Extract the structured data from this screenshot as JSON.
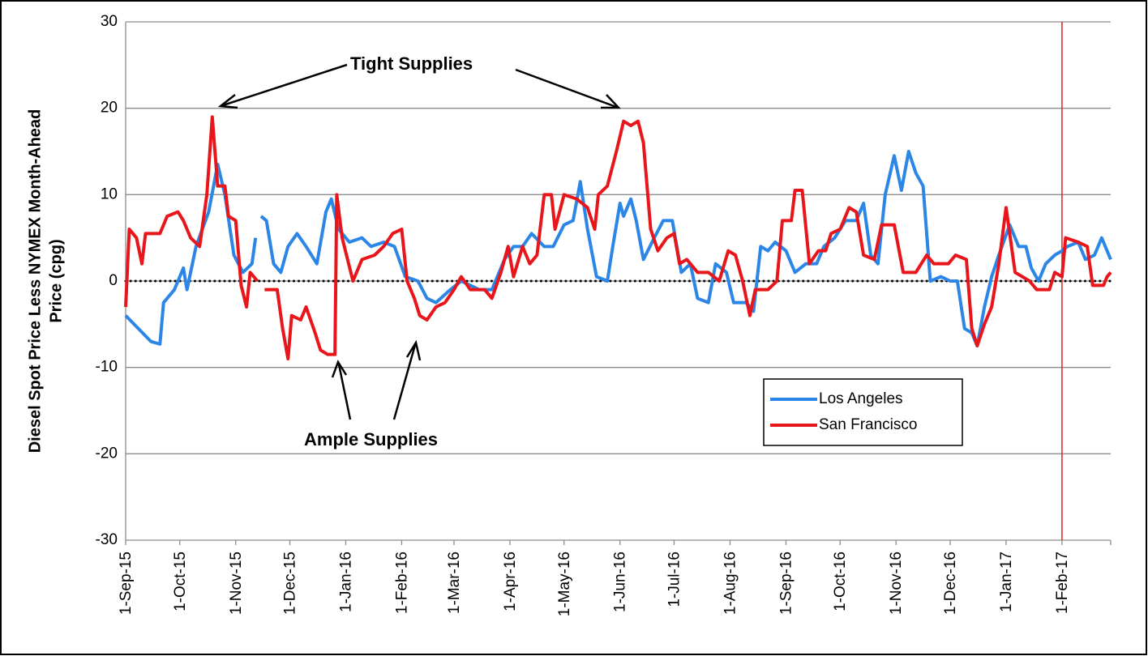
{
  "chart_data": {
    "type": "line",
    "ylabel": [
      "Diesel Spot Price Less NYMEX Month-Ahead",
      "Price (cpg)"
    ],
    "xlim": [
      "2015-09-01",
      "2017-02-28"
    ],
    "xticks": [
      {
        "value": "2015-09-01",
        "label": "1-Sep-15"
      },
      {
        "value": "2015-10-01",
        "label": "1-Oct-15"
      },
      {
        "value": "2015-11-01",
        "label": "1-Nov-15"
      },
      {
        "value": "2015-12-01",
        "label": "1-Dec-15"
      },
      {
        "value": "2016-01-01",
        "label": "1-Jan-16"
      },
      {
        "value": "2016-02-01",
        "label": "1-Feb-16"
      },
      {
        "value": "2016-03-01",
        "label": "1-Mar-16"
      },
      {
        "value": "2016-04-01",
        "label": "1-Apr-16"
      },
      {
        "value": "2016-05-01",
        "label": "1-May-16"
      },
      {
        "value": "2016-06-01",
        "label": "1-Jun-16"
      },
      {
        "value": "2016-07-01",
        "label": "1-Jul-16"
      },
      {
        "value": "2016-08-01",
        "label": "1-Aug-16"
      },
      {
        "value": "2016-09-01",
        "label": "1-Sep-16"
      },
      {
        "value": "2016-10-01",
        "label": "1-Oct-16"
      },
      {
        "value": "2016-11-01",
        "label": "1-Nov-16"
      },
      {
        "value": "2016-12-01",
        "label": "1-Dec-16"
      },
      {
        "value": "2017-01-01",
        "label": "1-Jan-17"
      },
      {
        "value": "2017-02-01",
        "label": "1-Feb-17"
      }
    ],
    "ylim": [
      -30,
      30
    ],
    "yticks": [
      -30,
      -20,
      -10,
      0,
      10,
      20,
      30
    ],
    "grid": true,
    "vline": {
      "value": "2017-02-01",
      "color": "#e02020"
    },
    "annotations": [
      "Tight Supplies",
      "Ample Supplies"
    ],
    "legend": "lower right",
    "series": [
      {
        "name": "Los Angeles",
        "color": "#2b86e6",
        "x": [
          "2015-09-01",
          "2015-09-08",
          "2015-09-15",
          "2015-09-20",
          "2015-09-22",
          "2015-09-28",
          "2015-10-03",
          "2015-10-05",
          "2015-10-10",
          "2015-10-17",
          "2015-10-22",
          "2015-10-26",
          "2015-10-31",
          "2015-11-05",
          "2015-11-10",
          "2015-11-12",
          "2015-11-14",
          "2015-11-15",
          "2015-11-18",
          "2015-11-22",
          "2015-11-26",
          "2015-11-30",
          "2015-12-05",
          "2015-12-10",
          "2015-12-16",
          "2015-12-21",
          "2015-12-24",
          "2015-12-28",
          "2016-01-03",
          "2016-01-10",
          "2016-01-15",
          "2016-01-22",
          "2016-01-28",
          "2016-02-03",
          "2016-02-10",
          "2016-02-15",
          "2016-02-20",
          "2016-02-28",
          "2016-03-05",
          "2016-03-10",
          "2016-03-15",
          "2016-03-22",
          "2016-03-29",
          "2016-04-03",
          "2016-04-08",
          "2016-04-13",
          "2016-04-20",
          "2016-04-25",
          "2016-05-01",
          "2016-05-06",
          "2016-05-10",
          "2016-05-14",
          "2016-05-19",
          "2016-05-25",
          "2016-05-28",
          "2016-06-01",
          "2016-06-03",
          "2016-06-07",
          "2016-06-10",
          "2016-06-14",
          "2016-06-20",
          "2016-06-25",
          "2016-06-30",
          "2016-07-05",
          "2016-07-10",
          "2016-07-14",
          "2016-07-20",
          "2016-07-24",
          "2016-07-30",
          "2016-08-03",
          "2016-08-10",
          "2016-08-14",
          "2016-08-18",
          "2016-08-22",
          "2016-08-26",
          "2016-09-01",
          "2016-09-06",
          "2016-09-12",
          "2016-09-18",
          "2016-09-22",
          "2016-09-28",
          "2016-10-04",
          "2016-10-10",
          "2016-10-14",
          "2016-10-18",
          "2016-10-22",
          "2016-10-26",
          "2016-10-31",
          "2016-11-04",
          "2016-11-08",
          "2016-11-12",
          "2016-11-16",
          "2016-11-20",
          "2016-11-26",
          "2016-12-01",
          "2016-12-05",
          "2016-12-09",
          "2016-12-13",
          "2016-12-16",
          "2016-12-20",
          "2016-12-24",
          "2016-12-28",
          "2017-01-03",
          "2017-01-08",
          "2017-01-12",
          "2017-01-15",
          "2017-01-19",
          "2017-01-23",
          "2017-01-28",
          "2017-02-01",
          "2017-02-04",
          "2017-02-10",
          "2017-02-14",
          "2017-02-19",
          "2017-02-23",
          "2017-02-28"
        ],
        "values": [
          -4,
          -5.5,
          -7,
          -7.3,
          -2.5,
          -1,
          1.5,
          -1,
          4,
          8,
          13.5,
          10,
          3,
          1,
          2,
          5,
          null,
          7.5,
          7,
          2,
          1,
          4,
          5.5,
          4,
          2,
          8,
          9.5,
          6,
          4.5,
          5,
          4,
          4.5,
          4,
          0.5,
          0,
          -2,
          -2.5,
          -1,
          0,
          -0.5,
          -1,
          -1,
          2.5,
          4,
          4,
          5.5,
          4,
          4,
          6.5,
          7,
          11.5,
          6,
          0.5,
          0,
          4,
          9,
          7.5,
          9.5,
          7,
          2.5,
          5,
          7,
          7,
          1,
          2,
          -2,
          -2.5,
          2,
          1,
          -2.5,
          -2.5,
          -3.5,
          4,
          3.5,
          4.5,
          3.5,
          1,
          2,
          2,
          4,
          5,
          7,
          7,
          9,
          3,
          2,
          10,
          14.5,
          10.5,
          15,
          12.5,
          11,
          0,
          0.5,
          0,
          0,
          -5.5,
          -6,
          -7.5,
          -3,
          0.5,
          3,
          6.5,
          4,
          4,
          1.5,
          0,
          2,
          3,
          3.5,
          4,
          4.5,
          2.5,
          3,
          5,
          2.5
        ]
      },
      {
        "name": "San Francisco",
        "color": "#e8161b",
        "x": [
          "2015-09-01",
          "2015-09-03",
          "2015-09-07",
          "2015-09-10",
          "2015-09-12",
          "2015-09-20",
          "2015-09-24",
          "2015-09-30",
          "2015-10-03",
          "2015-10-07",
          "2015-10-12",
          "2015-10-16",
          "2015-10-19",
          "2015-10-22",
          "2015-10-26",
          "2015-10-28",
          "2015-11-01",
          "2015-11-04",
          "2015-11-07",
          "2015-11-09",
          "2015-11-13",
          "2015-11-15",
          "2015-11-17",
          "2015-11-24",
          "2015-11-27",
          "2015-11-30",
          "2015-12-02",
          "2015-12-07",
          "2015-12-10",
          "2015-12-15",
          "2015-12-18",
          "2015-12-22",
          "2015-12-26",
          "2015-12-27",
          "2015-12-30",
          "2016-01-05",
          "2016-01-10",
          "2016-01-17",
          "2016-01-22",
          "2016-01-27",
          "2016-02-01",
          "2016-02-04",
          "2016-02-08",
          "2016-02-11",
          "2016-02-15",
          "2016-02-20",
          "2016-02-25",
          "2016-03-01",
          "2016-03-05",
          "2016-03-10",
          "2016-03-18",
          "2016-03-22",
          "2016-03-27",
          "2016-03-31",
          "2016-04-03",
          "2016-04-08",
          "2016-04-12",
          "2016-04-16",
          "2016-04-20",
          "2016-04-24",
          "2016-04-26",
          "2016-05-01",
          "2016-05-08",
          "2016-05-14",
          "2016-05-18",
          "2016-05-20",
          "2016-05-25",
          "2016-05-30",
          "2016-06-03",
          "2016-06-07",
          "2016-06-11",
          "2016-06-14",
          "2016-06-18",
          "2016-06-22",
          "2016-06-27",
          "2016-07-01",
          "2016-07-04",
          "2016-07-08",
          "2016-07-14",
          "2016-07-20",
          "2016-07-26",
          "2016-07-31",
          "2016-08-04",
          "2016-08-08",
          "2016-08-12",
          "2016-08-15",
          "2016-08-22",
          "2016-08-27",
          "2016-08-30",
          "2016-09-04",
          "2016-09-06",
          "2016-09-10",
          "2016-09-14",
          "2016-09-19",
          "2016-09-23",
          "2016-09-26",
          "2016-10-01",
          "2016-10-06",
          "2016-10-10",
          "2016-10-14",
          "2016-10-20",
          "2016-10-24",
          "2016-10-31",
          "2016-11-05",
          "2016-11-12",
          "2016-11-18",
          "2016-11-22",
          "2016-11-30",
          "2016-12-04",
          "2016-12-10",
          "2016-12-13",
          "2016-12-16",
          "2016-12-20",
          "2016-12-24",
          "2016-12-28",
          "2017-01-01",
          "2017-01-06",
          "2017-01-14",
          "2017-01-18",
          "2017-01-25",
          "2017-01-28",
          "2017-02-01",
          "2017-02-03",
          "2017-02-10",
          "2017-02-15",
          "2017-02-18",
          "2017-02-24",
          "2017-02-26",
          "2017-02-28"
        ],
        "values": [
          -3,
          6,
          5,
          2,
          5.5,
          5.5,
          7.5,
          8,
          7,
          5,
          4,
          10,
          19,
          11,
          11,
          7.5,
          7,
          -0.5,
          -3,
          1,
          0,
          null,
          -1,
          -1,
          -5.5,
          -9,
          -4,
          -4.5,
          -3,
          -6,
          -8,
          -8.5,
          -8.5,
          10,
          5,
          0,
          2.5,
          3,
          4,
          5.5,
          6,
          0,
          -2,
          -4,
          -4.5,
          -3,
          -2.5,
          -1,
          0.5,
          -1,
          -1,
          -2,
          1,
          4,
          0.5,
          4,
          2,
          3,
          10,
          10,
          6,
          10,
          9.5,
          8.5,
          6,
          10,
          11,
          15,
          18.5,
          18,
          18.5,
          16,
          6,
          3.5,
          5,
          5.5,
          2,
          2.5,
          1,
          1,
          0,
          3.5,
          3,
          0,
          -4,
          -1,
          -1,
          0,
          7,
          7,
          10.5,
          10.5,
          2,
          3.5,
          3.5,
          5.5,
          6,
          8.5,
          8,
          3,
          2.5,
          6.5,
          6.5,
          1,
          1,
          3,
          2,
          2,
          3,
          2.5,
          -5.5,
          -7.5,
          -5,
          -3,
          2,
          8.5,
          1,
          0,
          -1,
          -1,
          1,
          0.5,
          5,
          4.5,
          4,
          -0.5,
          -0.5,
          0.5,
          1
        ]
      }
    ]
  }
}
